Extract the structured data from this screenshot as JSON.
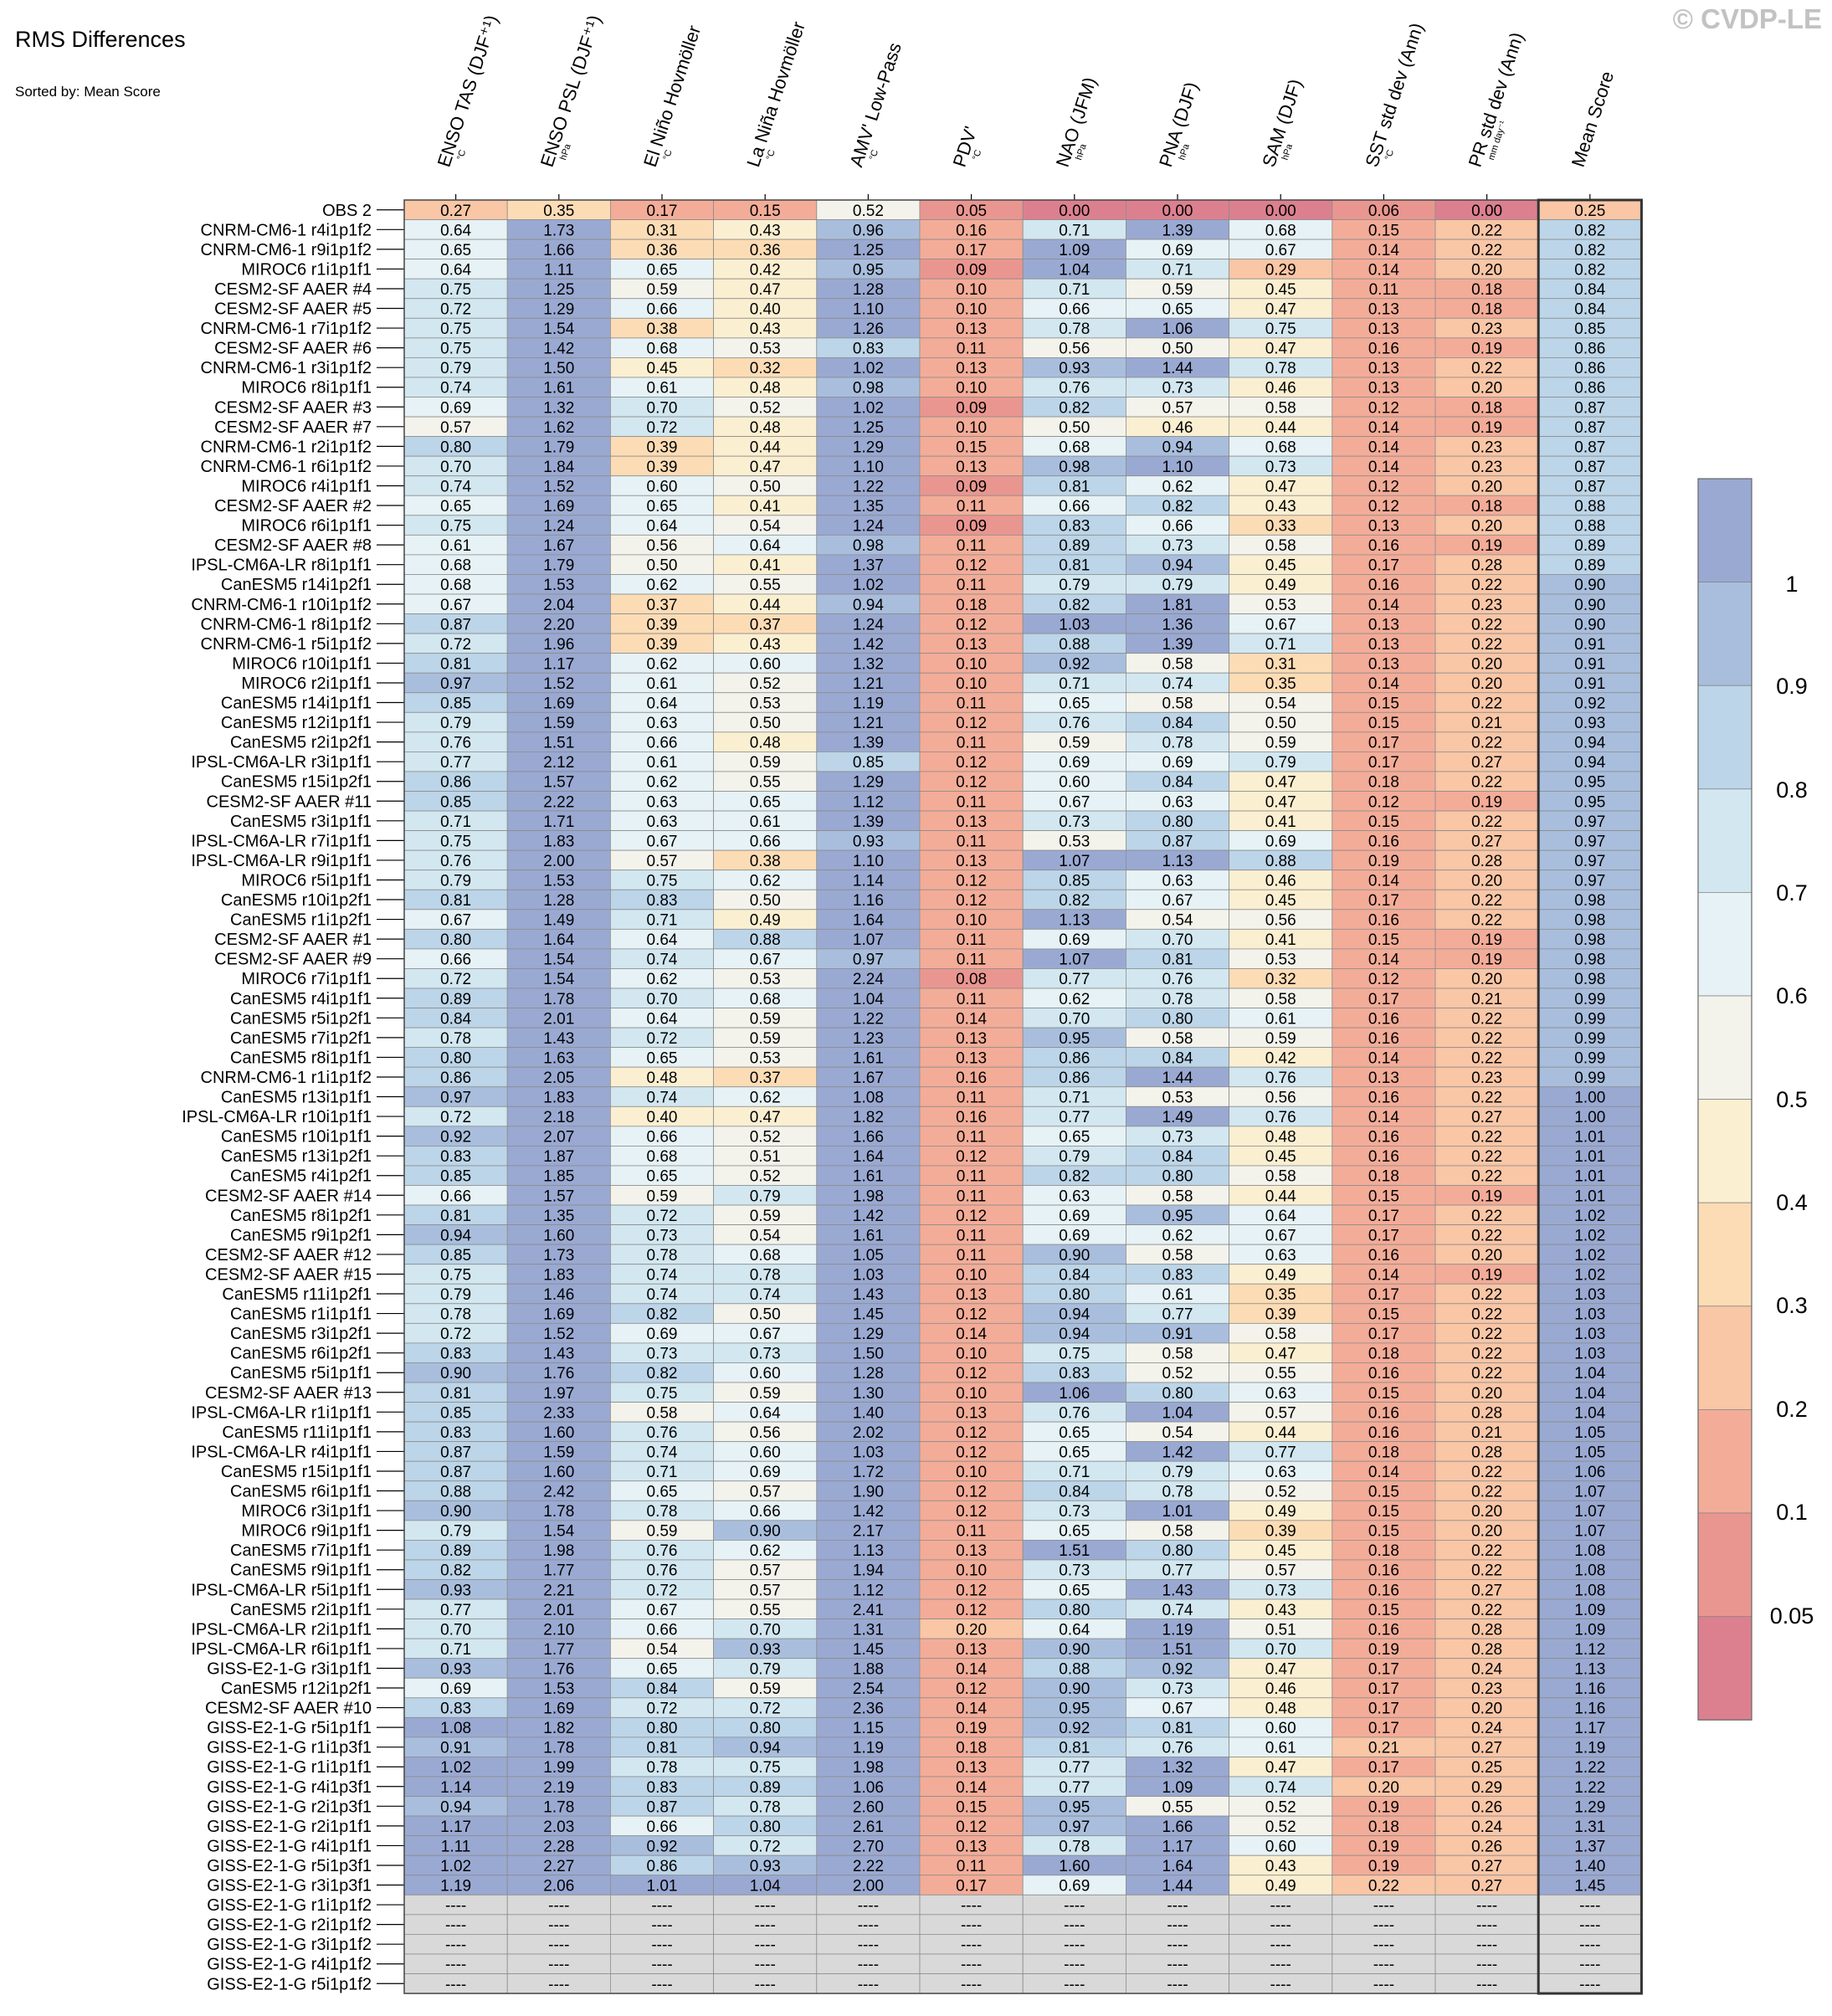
{
  "title": "RMS Differences",
  "subtitle": "Sorted by: Mean Score",
  "watermark": "© CVDP-LE",
  "chart_data": {
    "type": "heatmap",
    "title": "RMS Differences",
    "subtitle": "Sorted by: Mean Score",
    "columns": [
      {
        "label": "ENSO TAS (DJF⁺¹)",
        "unit": "°C"
      },
      {
        "label": "ENSO PSL (DJF⁺¹)",
        "unit": "hPa"
      },
      {
        "label": "El Niño Hovmöller",
        "unit": "°C"
      },
      {
        "label": "La Niña Hovmöller",
        "unit": "°C"
      },
      {
        "label": "AMV' Low-Pass",
        "unit": "°C"
      },
      {
        "label": "PDV'",
        "unit": "°C"
      },
      {
        "label": "NAO (JFM)",
        "unit": "hPa"
      },
      {
        "label": "PNA (DJF)",
        "unit": "hPa"
      },
      {
        "label": "SAM (DJF)",
        "unit": "hPa"
      },
      {
        "label": "SST std dev (Ann)",
        "unit": "°C"
      },
      {
        "label": "PR std dev (Ann)",
        "unit": "mm day⁻¹"
      },
      {
        "label": "Mean Score",
        "unit": ""
      }
    ],
    "colorbar": {
      "ticks": [
        "1",
        "0.9",
        "0.8",
        "0.7",
        "0.6",
        "0.5",
        "0.4",
        "0.3",
        "0.2",
        "0.1",
        "0.05"
      ],
      "colors": [
        "#9aa9d2",
        "#a9bedd",
        "#bcd5e8",
        "#d2e7f0",
        "#e6f2f5",
        "#f3f3ec",
        "#fbefd1",
        "#fcdcb5",
        "#f9c6a6",
        "#f3ac98",
        "#ea9690",
        "#dc808f"
      ]
    },
    "missing_color": "#d9d9d9",
    "missing_text": "----",
    "rows": [
      {
        "name": "OBS 2",
        "v": "0.27 0.35 0.17 0.15 0.52 0.05 0.00 0.00 0.00 0.06 0.00 0.25"
      },
      {
        "name": "CNRM-CM6-1 r4i1p1f2",
        "v": "0.64 1.73 0.31 0.43 0.96 0.16 0.71 1.39 0.68 0.15 0.22 0.82"
      },
      {
        "name": "CNRM-CM6-1 r9i1p1f2",
        "v": "0.65 1.66 0.36 0.36 1.25 0.17 1.09 0.69 0.67 0.14 0.22 0.82"
      },
      {
        "name": "MIROC6 r1i1p1f1",
        "v": "0.64 1.11 0.65 0.42 0.95 0.09 1.04 0.71 0.29 0.14 0.20 0.82"
      },
      {
        "name": "CESM2-SF AAER #4",
        "v": "0.75 1.25 0.59 0.47 1.28 0.10 0.71 0.59 0.45 0.11 0.18 0.84"
      },
      {
        "name": "CESM2-SF AAER #5",
        "v": "0.72 1.29 0.66 0.40 1.10 0.10 0.66 0.65 0.47 0.13 0.18 0.84"
      },
      {
        "name": "CNRM-CM6-1 r7i1p1f2",
        "v": "0.75 1.54 0.38 0.43 1.26 0.13 0.78 1.06 0.75 0.13 0.23 0.85"
      },
      {
        "name": "CESM2-SF AAER #6",
        "v": "0.75 1.42 0.68 0.53 0.83 0.11 0.56 0.50 0.47 0.16 0.19 0.86"
      },
      {
        "name": "CNRM-CM6-1 r3i1p1f2",
        "v": "0.79 1.50 0.45 0.32 1.02 0.13 0.93 1.44 0.78 0.13 0.22 0.86"
      },
      {
        "name": "MIROC6 r8i1p1f1",
        "v": "0.74 1.61 0.61 0.48 0.98 0.10 0.76 0.73 0.46 0.13 0.20 0.86"
      },
      {
        "name": "CESM2-SF AAER #3",
        "v": "0.69 1.32 0.70 0.52 1.02 0.09 0.82 0.57 0.58 0.12 0.18 0.87"
      },
      {
        "name": "CESM2-SF AAER #7",
        "v": "0.57 1.62 0.72 0.48 1.25 0.10 0.50 0.46 0.44 0.14 0.19 0.87"
      },
      {
        "name": "CNRM-CM6-1 r2i1p1f2",
        "v": "0.80 1.79 0.39 0.44 1.29 0.15 0.68 0.94 0.68 0.14 0.23 0.87"
      },
      {
        "name": "CNRM-CM6-1 r6i1p1f2",
        "v": "0.70 1.84 0.39 0.47 1.10 0.13 0.98 1.10 0.73 0.14 0.23 0.87"
      },
      {
        "name": "MIROC6 r4i1p1f1",
        "v": "0.74 1.52 0.60 0.50 1.22 0.09 0.81 0.62 0.47 0.12 0.20 0.87"
      },
      {
        "name": "CESM2-SF AAER #2",
        "v": "0.65 1.69 0.65 0.41 1.35 0.11 0.66 0.82 0.43 0.12 0.18 0.88"
      },
      {
        "name": "MIROC6 r6i1p1f1",
        "v": "0.75 1.24 0.64 0.54 1.24 0.09 0.83 0.66 0.33 0.13 0.20 0.88"
      },
      {
        "name": "CESM2-SF AAER #8",
        "v": "0.61 1.67 0.56 0.64 0.98 0.11 0.89 0.73 0.58 0.16 0.19 0.89"
      },
      {
        "name": "IPSL-CM6A-LR r8i1p1f1",
        "v": "0.68 1.79 0.50 0.41 1.37 0.12 0.81 0.94 0.45 0.17 0.28 0.89"
      },
      {
        "name": "CanESM5 r14i1p2f1",
        "v": "0.68 1.53 0.62 0.55 1.02 0.11 0.79 0.79 0.49 0.16 0.22 0.90"
      },
      {
        "name": "CNRM-CM6-1 r10i1p1f2",
        "v": "0.67 2.04 0.37 0.44 0.94 0.18 0.82 1.81 0.53 0.14 0.23 0.90"
      },
      {
        "name": "CNRM-CM6-1 r8i1p1f2",
        "v": "0.87 2.20 0.39 0.37 1.24 0.12 1.03 1.36 0.67 0.13 0.22 0.90"
      },
      {
        "name": "CNRM-CM6-1 r5i1p1f2",
        "v": "0.72 1.96 0.39 0.43 1.42 0.13 0.88 1.39 0.71 0.13 0.22 0.91"
      },
      {
        "name": "MIROC6 r10i1p1f1",
        "v": "0.81 1.17 0.62 0.60 1.32 0.10 0.92 0.58 0.31 0.13 0.20 0.91"
      },
      {
        "name": "MIROC6 r2i1p1f1",
        "v": "0.97 1.52 0.61 0.52 1.21 0.10 0.71 0.74 0.35 0.14 0.20 0.91"
      },
      {
        "name": "CanESM5 r14i1p1f1",
        "v": "0.85 1.69 0.64 0.53 1.19 0.11 0.65 0.58 0.54 0.15 0.22 0.92"
      },
      {
        "name": "CanESM5 r12i1p1f1",
        "v": "0.79 1.59 0.63 0.50 1.21 0.12 0.76 0.84 0.50 0.15 0.21 0.93"
      },
      {
        "name": "CanESM5 r2i1p2f1",
        "v": "0.76 1.51 0.66 0.48 1.39 0.11 0.59 0.78 0.59 0.17 0.22 0.94"
      },
      {
        "name": "IPSL-CM6A-LR r3i1p1f1",
        "v": "0.77 2.12 0.61 0.59 0.85 0.12 0.69 0.69 0.79 0.17 0.27 0.94"
      },
      {
        "name": "CanESM5 r15i1p2f1",
        "v": "0.86 1.57 0.62 0.55 1.29 0.12 0.60 0.84 0.47 0.18 0.22 0.95"
      },
      {
        "name": "CESM2-SF AAER #11",
        "v": "0.85 2.22 0.63 0.65 1.12 0.11 0.67 0.63 0.47 0.12 0.19 0.95"
      },
      {
        "name": "CanESM5 r3i1p1f1",
        "v": "0.71 1.71 0.63 0.61 1.39 0.13 0.73 0.80 0.41 0.15 0.22 0.97"
      },
      {
        "name": "IPSL-CM6A-LR r7i1p1f1",
        "v": "0.75 1.83 0.67 0.66 0.93 0.11 0.53 0.87 0.69 0.16 0.27 0.97"
      },
      {
        "name": "IPSL-CM6A-LR r9i1p1f1",
        "v": "0.76 2.00 0.57 0.38 1.10 0.13 1.07 1.13 0.88 0.19 0.28 0.97"
      },
      {
        "name": "MIROC6 r5i1p1f1",
        "v": "0.79 1.53 0.75 0.62 1.14 0.12 0.85 0.63 0.46 0.14 0.20 0.97"
      },
      {
        "name": "CanESM5 r10i1p2f1",
        "v": "0.81 1.28 0.83 0.50 1.16 0.12 0.82 0.67 0.45 0.17 0.22 0.98"
      },
      {
        "name": "CanESM5 r1i1p2f1",
        "v": "0.67 1.49 0.71 0.49 1.64 0.10 1.13 0.54 0.56 0.16 0.22 0.98"
      },
      {
        "name": "CESM2-SF AAER #1",
        "v": "0.80 1.64 0.64 0.88 1.07 0.11 0.69 0.70 0.41 0.15 0.19 0.98"
      },
      {
        "name": "CESM2-SF AAER #9",
        "v": "0.66 1.54 0.74 0.67 0.97 0.11 1.07 0.81 0.53 0.14 0.19 0.98"
      },
      {
        "name": "MIROC6 r7i1p1f1",
        "v": "0.72 1.54 0.62 0.53 2.24 0.08 0.77 0.76 0.32 0.12 0.20 0.98"
      },
      {
        "name": "CanESM5 r4i1p1f1",
        "v": "0.89 1.78 0.70 0.68 1.04 0.11 0.62 0.78 0.58 0.17 0.21 0.99"
      },
      {
        "name": "CanESM5 r5i1p2f1",
        "v": "0.84 2.01 0.64 0.59 1.22 0.14 0.70 0.80 0.61 0.16 0.22 0.99"
      },
      {
        "name": "CanESM5 r7i1p2f1",
        "v": "0.78 1.43 0.72 0.59 1.23 0.13 0.95 0.58 0.59 0.16 0.22 0.99"
      },
      {
        "name": "CanESM5 r8i1p1f1",
        "v": "0.80 1.63 0.65 0.53 1.61 0.13 0.86 0.84 0.42 0.14 0.22 0.99"
      },
      {
        "name": "CNRM-CM6-1 r1i1p1f2",
        "v": "0.86 2.05 0.48 0.37 1.67 0.16 0.86 1.44 0.76 0.13 0.23 0.99"
      },
      {
        "name": "CanESM5 r13i1p1f1",
        "v": "0.97 1.83 0.74 0.62 1.08 0.11 0.71 0.53 0.56 0.16 0.22 1.00"
      },
      {
        "name": "IPSL-CM6A-LR r10i1p1f1",
        "v": "0.72 2.18 0.40 0.47 1.82 0.16 0.77 1.49 0.76 0.14 0.27 1.00"
      },
      {
        "name": "CanESM5 r10i1p1f1",
        "v": "0.92 2.07 0.66 0.52 1.66 0.11 0.65 0.73 0.48 0.16 0.22 1.01"
      },
      {
        "name": "CanESM5 r13i1p2f1",
        "v": "0.83 1.87 0.68 0.51 1.64 0.12 0.79 0.84 0.45 0.16 0.22 1.01"
      },
      {
        "name": "CanESM5 r4i1p2f1",
        "v": "0.85 1.85 0.65 0.52 1.61 0.11 0.82 0.80 0.58 0.18 0.22 1.01"
      },
      {
        "name": "CESM2-SF AAER #14",
        "v": "0.66 1.57 0.59 0.79 1.98 0.11 0.63 0.58 0.44 0.15 0.19 1.01"
      },
      {
        "name": "CanESM5 r8i1p2f1",
        "v": "0.81 1.35 0.72 0.59 1.42 0.12 0.69 0.95 0.64 0.17 0.22 1.02"
      },
      {
        "name": "CanESM5 r9i1p2f1",
        "v": "0.94 1.60 0.73 0.54 1.61 0.11 0.69 0.62 0.67 0.17 0.22 1.02"
      },
      {
        "name": "CESM2-SF AAER #12",
        "v": "0.85 1.73 0.78 0.68 1.05 0.11 0.90 0.58 0.63 0.16 0.20 1.02"
      },
      {
        "name": "CESM2-SF AAER #15",
        "v": "0.75 1.83 0.74 0.78 1.03 0.10 0.84 0.83 0.49 0.14 0.19 1.02"
      },
      {
        "name": "CanESM5 r11i1p2f1",
        "v": "0.79 1.46 0.74 0.74 1.43 0.13 0.80 0.61 0.35 0.17 0.22 1.03"
      },
      {
        "name": "CanESM5 r1i1p1f1",
        "v": "0.78 1.69 0.82 0.50 1.45 0.12 0.94 0.77 0.39 0.15 0.22 1.03"
      },
      {
        "name": "CanESM5 r3i1p2f1",
        "v": "0.72 1.52 0.69 0.67 1.29 0.14 0.94 0.91 0.58 0.17 0.22 1.03"
      },
      {
        "name": "CanESM5 r6i1p2f1",
        "v": "0.83 1.43 0.73 0.73 1.50 0.10 0.75 0.58 0.47 0.18 0.22 1.03"
      },
      {
        "name": "CanESM5 r5i1p1f1",
        "v": "0.90 1.76 0.82 0.60 1.28 0.12 0.83 0.52 0.55 0.16 0.22 1.04"
      },
      {
        "name": "CESM2-SF AAER #13",
        "v": "0.81 1.97 0.75 0.59 1.30 0.10 1.06 0.80 0.63 0.15 0.20 1.04"
      },
      {
        "name": "IPSL-CM6A-LR r1i1p1f1",
        "v": "0.85 2.33 0.58 0.64 1.40 0.13 0.76 1.04 0.57 0.16 0.28 1.04"
      },
      {
        "name": "CanESM5 r11i1p1f1",
        "v": "0.83 1.60 0.76 0.56 2.02 0.12 0.65 0.54 0.44 0.16 0.21 1.05"
      },
      {
        "name": "IPSL-CM6A-LR r4i1p1f1",
        "v": "0.87 1.59 0.74 0.60 1.03 0.12 0.65 1.42 0.77 0.18 0.28 1.05"
      },
      {
        "name": "CanESM5 r15i1p1f1",
        "v": "0.87 1.60 0.71 0.69 1.72 0.10 0.71 0.79 0.63 0.14 0.22 1.06"
      },
      {
        "name": "CanESM5 r6i1p1f1",
        "v": "0.88 2.42 0.65 0.57 1.90 0.12 0.84 0.78 0.52 0.15 0.22 1.07"
      },
      {
        "name": "MIROC6 r3i1p1f1",
        "v": "0.90 1.78 0.78 0.66 1.42 0.12 0.73 1.01 0.49 0.15 0.20 1.07"
      },
      {
        "name": "MIROC6 r9i1p1f1",
        "v": "0.79 1.54 0.59 0.90 2.17 0.11 0.65 0.58 0.39 0.15 0.20 1.07"
      },
      {
        "name": "CanESM5 r7i1p1f1",
        "v": "0.89 1.98 0.76 0.62 1.13 0.13 1.51 0.80 0.45 0.18 0.22 1.08"
      },
      {
        "name": "CanESM5 r9i1p1f1",
        "v": "0.82 1.77 0.76 0.57 1.94 0.10 0.73 0.77 0.57 0.16 0.22 1.08"
      },
      {
        "name": "IPSL-CM6A-LR r5i1p1f1",
        "v": "0.93 2.21 0.72 0.57 1.12 0.12 0.65 1.43 0.73 0.16 0.27 1.08"
      },
      {
        "name": "CanESM5 r2i1p1f1",
        "v": "0.77 2.01 0.67 0.55 2.41 0.12 0.80 0.74 0.43 0.15 0.22 1.09"
      },
      {
        "name": "IPSL-CM6A-LR r2i1p1f1",
        "v": "0.70 2.10 0.66 0.70 1.31 0.20 0.64 1.19 0.51 0.16 0.28 1.09"
      },
      {
        "name": "IPSL-CM6A-LR r6i1p1f1",
        "v": "0.71 1.77 0.54 0.93 1.45 0.13 0.90 1.51 0.70 0.19 0.28 1.12"
      },
      {
        "name": "GISS-E2-1-G r3i1p1f1",
        "v": "0.93 1.76 0.65 0.79 1.88 0.14 0.88 0.92 0.47 0.17 0.24 1.13"
      },
      {
        "name": "CanESM5 r12i1p2f1",
        "v": "0.69 1.53 0.84 0.59 2.54 0.12 0.90 0.73 0.46 0.17 0.23 1.16"
      },
      {
        "name": "CESM2-SF AAER #10",
        "v": "0.83 1.69 0.72 0.72 2.36 0.14 0.95 0.67 0.48 0.17 0.20 1.16"
      },
      {
        "name": "GISS-E2-1-G r5i1p1f1",
        "v": "1.08 1.82 0.80 0.80 1.15 0.19 0.92 0.81 0.60 0.17 0.24 1.17"
      },
      {
        "name": "GISS-E2-1-G r1i1p3f1",
        "v": "0.91 1.78 0.81 0.94 1.19 0.18 0.81 0.76 0.61 0.21 0.27 1.19"
      },
      {
        "name": "GISS-E2-1-G r1i1p1f1",
        "v": "1.02 1.99 0.78 0.75 1.98 0.13 0.77 1.32 0.47 0.17 0.25 1.22"
      },
      {
        "name": "GISS-E2-1-G r4i1p3f1",
        "v": "1.14 2.19 0.83 0.89 1.06 0.14 0.77 1.09 0.74 0.20 0.29 1.22"
      },
      {
        "name": "GISS-E2-1-G r2i1p3f1",
        "v": "0.94 1.78 0.87 0.78 2.60 0.15 0.95 0.55 0.52 0.19 0.26 1.29"
      },
      {
        "name": "GISS-E2-1-G r2i1p1f1",
        "v": "1.17 2.03 0.66 0.80 2.61 0.12 0.97 1.66 0.52 0.18 0.24 1.31"
      },
      {
        "name": "GISS-E2-1-G r4i1p1f1",
        "v": "1.11 2.28 0.92 0.72 2.70 0.13 0.78 1.17 0.60 0.19 0.26 1.37"
      },
      {
        "name": "GISS-E2-1-G r5i1p3f1",
        "v": "1.02 2.27 0.86 0.93 2.22 0.11 1.60 1.64 0.43 0.19 0.27 1.40"
      },
      {
        "name": "GISS-E2-1-G r3i1p3f1",
        "v": "1.19 2.06 1.01 1.04 2.00 0.17 0.69 1.44 0.49 0.22 0.27 1.45"
      },
      {
        "name": "GISS-E2-1-G r1i1p1f2",
        "v": "---- ---- ---- ---- ---- ---- ---- ---- ---- ---- ---- ----"
      },
      {
        "name": "GISS-E2-1-G r2i1p1f2",
        "v": "---- ---- ---- ---- ---- ---- ---- ---- ---- ---- ---- ----"
      },
      {
        "name": "GISS-E2-1-G r3i1p1f2",
        "v": "---- ---- ---- ---- ---- ---- ---- ---- ---- ---- ---- ----"
      },
      {
        "name": "GISS-E2-1-G r4i1p1f2",
        "v": "---- ---- ---- ---- ---- ---- ---- ---- ---- ---- ---- ----"
      },
      {
        "name": "GISS-E2-1-G r5i1p1f2",
        "v": "---- ---- ---- ---- ---- ---- ---- ---- ---- ---- ---- ----"
      }
    ]
  }
}
